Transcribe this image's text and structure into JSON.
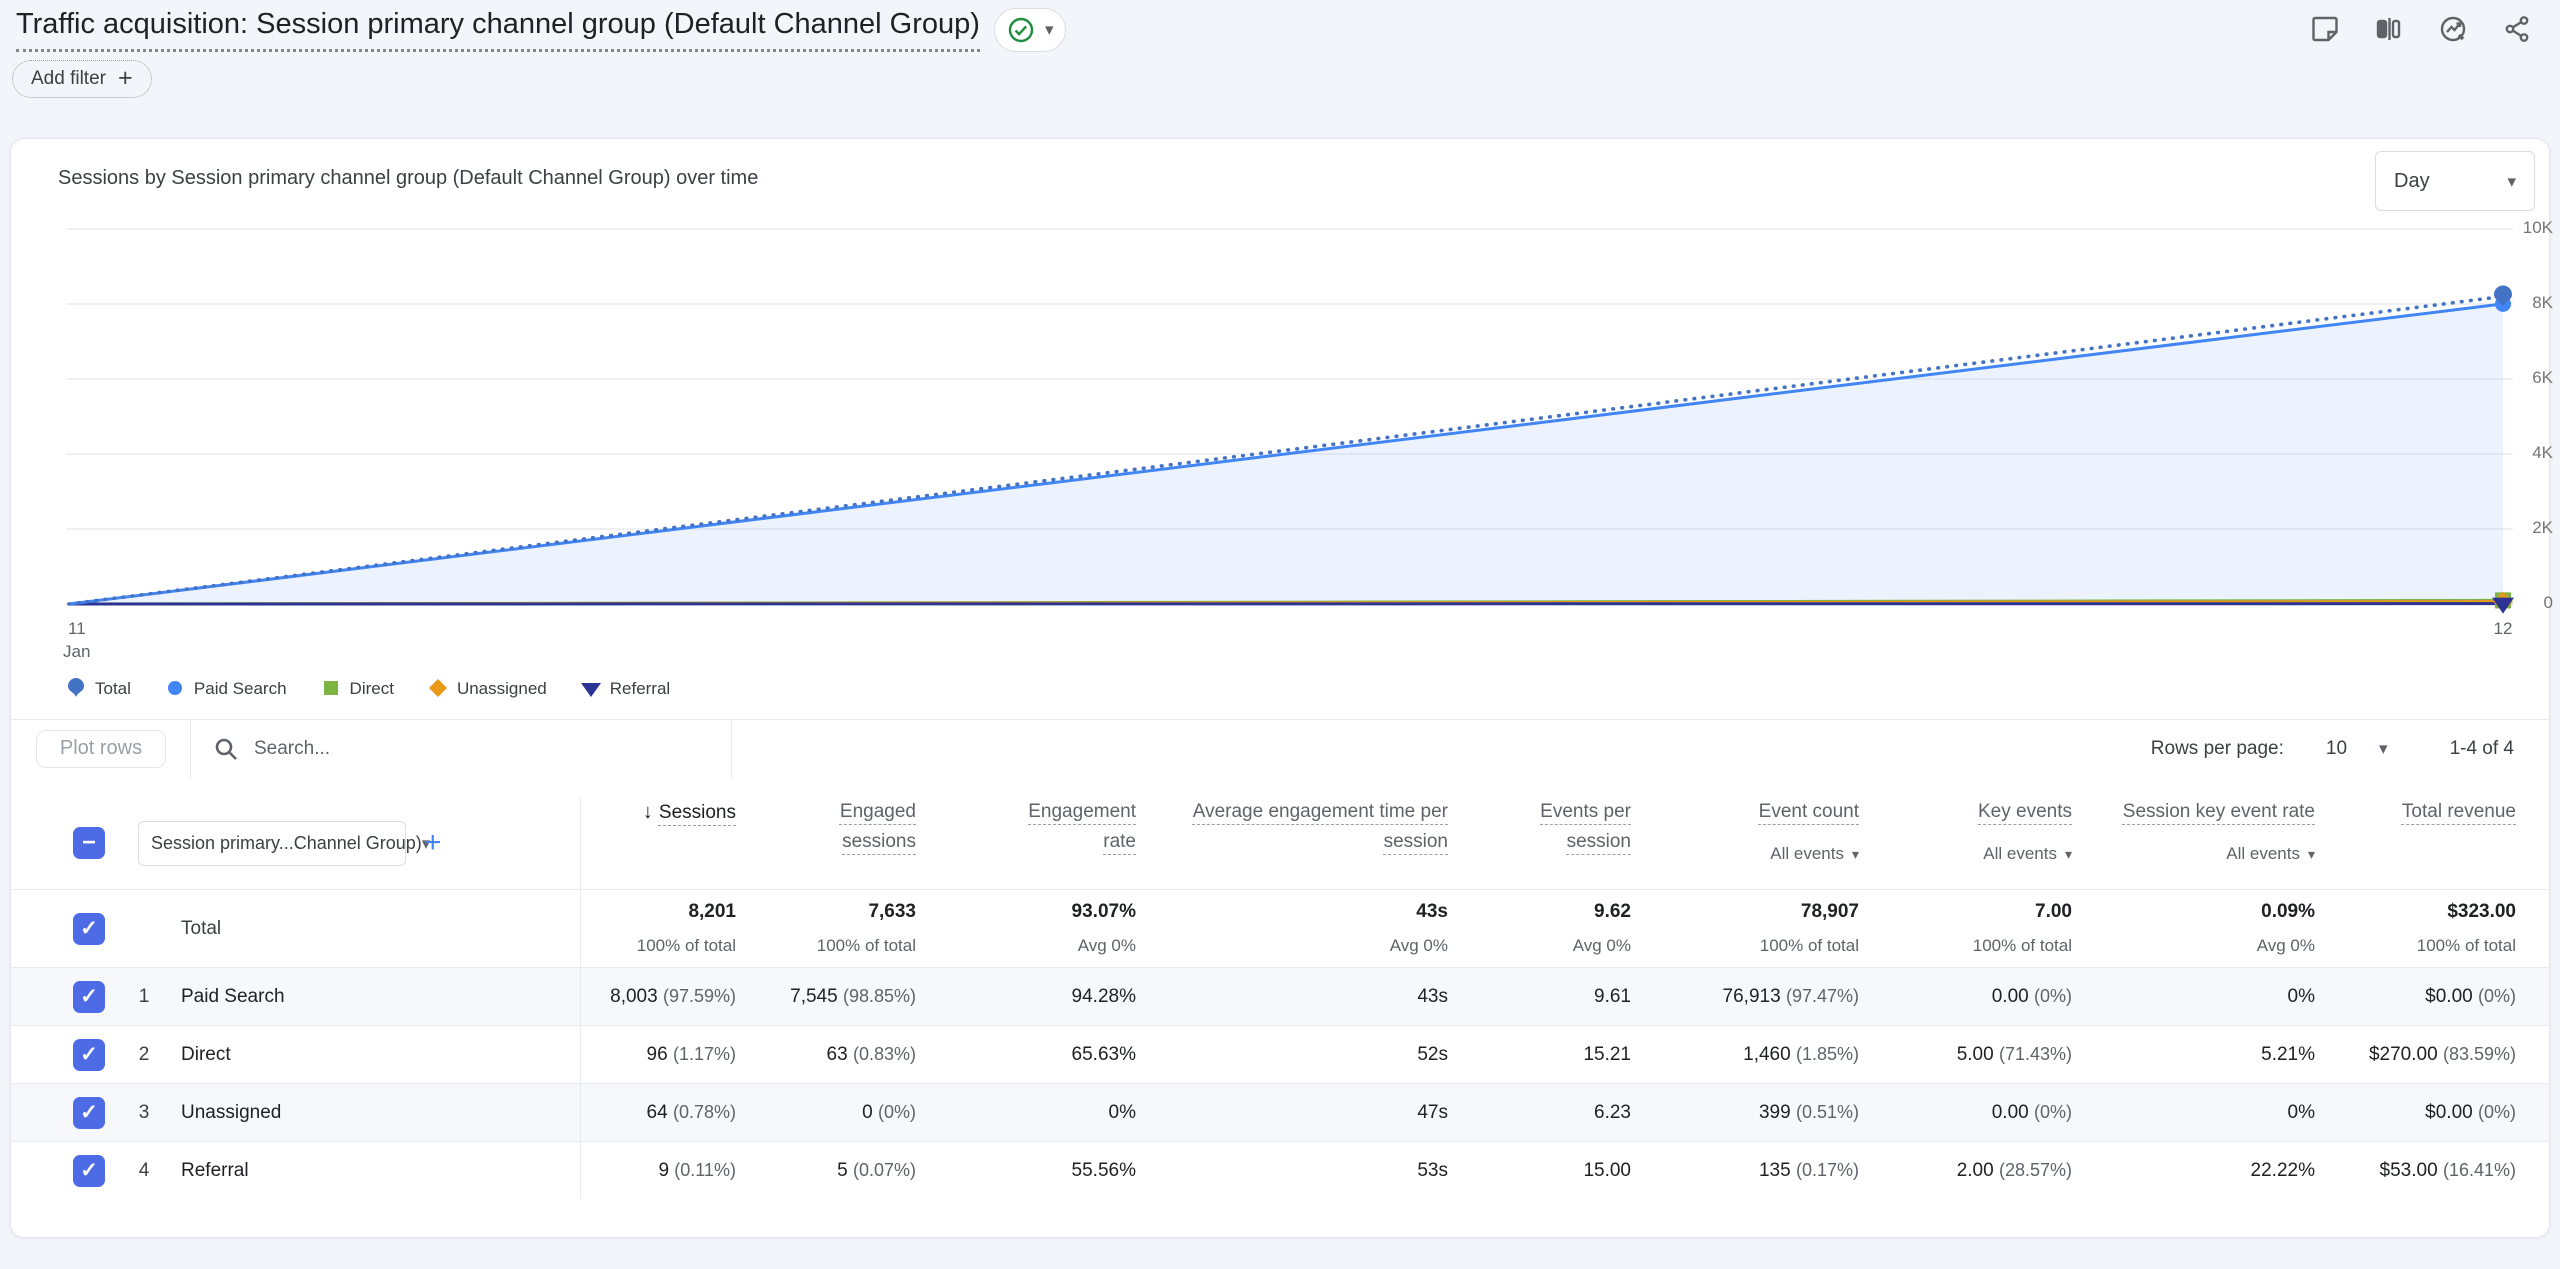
{
  "header": {
    "title": "Traffic acquisition: Session primary channel group (Default Channel Group)",
    "add_filter_label": "Add filter",
    "status_ok_color": "#1e8e3e"
  },
  "chart": {
    "title": "Sessions by Session primary channel group (Default Channel Group) over time",
    "interval_label": "Day"
  },
  "chart_data": {
    "type": "line",
    "x": [
      "Jan 11",
      "Jan 12"
    ],
    "x_tick_labels": {
      "left_day": "11",
      "left_month": "Jan",
      "right_day": "12"
    },
    "series": [
      {
        "name": "Total",
        "values": [
          0,
          8201
        ],
        "color": "#4472c4",
        "style": "dotted",
        "marker": "balloon"
      },
      {
        "name": "Paid Search",
        "values": [
          0,
          8003
        ],
        "color": "#4285f4",
        "style": "solid",
        "marker": "circle",
        "area_fill": true
      },
      {
        "name": "Direct",
        "values": [
          0,
          96
        ],
        "color": "#7cb342",
        "style": "solid",
        "marker": "square"
      },
      {
        "name": "Unassigned",
        "values": [
          0,
          64
        ],
        "color": "#e8991c",
        "style": "solid",
        "marker": "diamond"
      },
      {
        "name": "Referral",
        "values": [
          0,
          9
        ],
        "color": "#2b3493",
        "style": "solid",
        "marker": "triangle-down"
      }
    ],
    "ylim": [
      0,
      10000
    ],
    "yticks": [
      {
        "v": 0,
        "label": "0"
      },
      {
        "v": 2000,
        "label": "2K"
      },
      {
        "v": 4000,
        "label": "4K"
      },
      {
        "v": 6000,
        "label": "6K"
      },
      {
        "v": 8000,
        "label": "8K"
      },
      {
        "v": 10000,
        "label": "10K"
      }
    ],
    "grid": true,
    "legend_position": "bottom",
    "area_fill_color": "rgba(66,133,244,0.10)"
  },
  "toolbar": {
    "plot_rows_label": "Plot rows",
    "search_placeholder": "Search...",
    "rows_per_page_label": "Rows per page:",
    "rows_per_page_value": "10",
    "range_label": "1-4 of 4"
  },
  "table": {
    "dimension_selector": "Session primary...Channel Group)",
    "columns": [
      {
        "label": "Sessions",
        "sorted": true
      },
      {
        "label": "Engaged sessions"
      },
      {
        "label": "Engagement rate"
      },
      {
        "label": "Average engagement time per session"
      },
      {
        "label": "Events per session"
      },
      {
        "label": "Event count",
        "filter": "All events"
      },
      {
        "label": "Key events",
        "filter": "All events"
      },
      {
        "label": "Session key event rate",
        "filter": "All events"
      },
      {
        "label": "Total revenue"
      }
    ],
    "total_row": {
      "label": "Total",
      "cells": [
        {
          "v": "8,201",
          "sub": "100% of total"
        },
        {
          "v": "7,633",
          "sub": "100% of total"
        },
        {
          "v": "93.07%",
          "sub": "Avg 0%"
        },
        {
          "v": "43s",
          "sub": "Avg 0%"
        },
        {
          "v": "9.62",
          "sub": "Avg 0%"
        },
        {
          "v": "78,907",
          "sub": "100% of total"
        },
        {
          "v": "7.00",
          "sub": "100% of total"
        },
        {
          "v": "0.09%",
          "sub": "Avg 0%"
        },
        {
          "v": "$323.00",
          "sub": "100% of total"
        }
      ]
    },
    "rows": [
      {
        "index": "1",
        "name": "Paid Search",
        "cells": [
          {
            "v": "8,003",
            "p": "(97.59%)"
          },
          {
            "v": "7,545",
            "p": "(98.85%)"
          },
          {
            "v": "94.28%"
          },
          {
            "v": "43s"
          },
          {
            "v": "9.61"
          },
          {
            "v": "76,913",
            "p": "(97.47%)"
          },
          {
            "v": "0.00",
            "p": "(0%)"
          },
          {
            "v": "0%"
          },
          {
            "v": "$0.00",
            "p": "(0%)"
          }
        ]
      },
      {
        "index": "2",
        "name": "Direct",
        "cells": [
          {
            "v": "96",
            "p": "(1.17%)"
          },
          {
            "v": "63",
            "p": "(0.83%)"
          },
          {
            "v": "65.63%"
          },
          {
            "v": "52s"
          },
          {
            "v": "15.21"
          },
          {
            "v": "1,460",
            "p": "(1.85%)"
          },
          {
            "v": "5.00",
            "p": "(71.43%)"
          },
          {
            "v": "5.21%"
          },
          {
            "v": "$270.00",
            "p": "(83.59%)"
          }
        ]
      },
      {
        "index": "3",
        "name": "Unassigned",
        "cells": [
          {
            "v": "64",
            "p": "(0.78%)"
          },
          {
            "v": "0",
            "p": "(0%)"
          },
          {
            "v": "0%"
          },
          {
            "v": "47s"
          },
          {
            "v": "6.23"
          },
          {
            "v": "399",
            "p": "(0.51%)"
          },
          {
            "v": "0.00",
            "p": "(0%)"
          },
          {
            "v": "0%"
          },
          {
            "v": "$0.00",
            "p": "(0%)"
          }
        ]
      },
      {
        "index": "4",
        "name": "Referral",
        "cells": [
          {
            "v": "9",
            "p": "(0.11%)"
          },
          {
            "v": "5",
            "p": "(0.07%)"
          },
          {
            "v": "55.56%"
          },
          {
            "v": "53s"
          },
          {
            "v": "15.00"
          },
          {
            "v": "135",
            "p": "(0.17%)"
          },
          {
            "v": "2.00",
            "p": "(28.57%)"
          },
          {
            "v": "22.22%"
          },
          {
            "v": "$53.00",
            "p": "(16.41%)"
          }
        ]
      }
    ]
  }
}
